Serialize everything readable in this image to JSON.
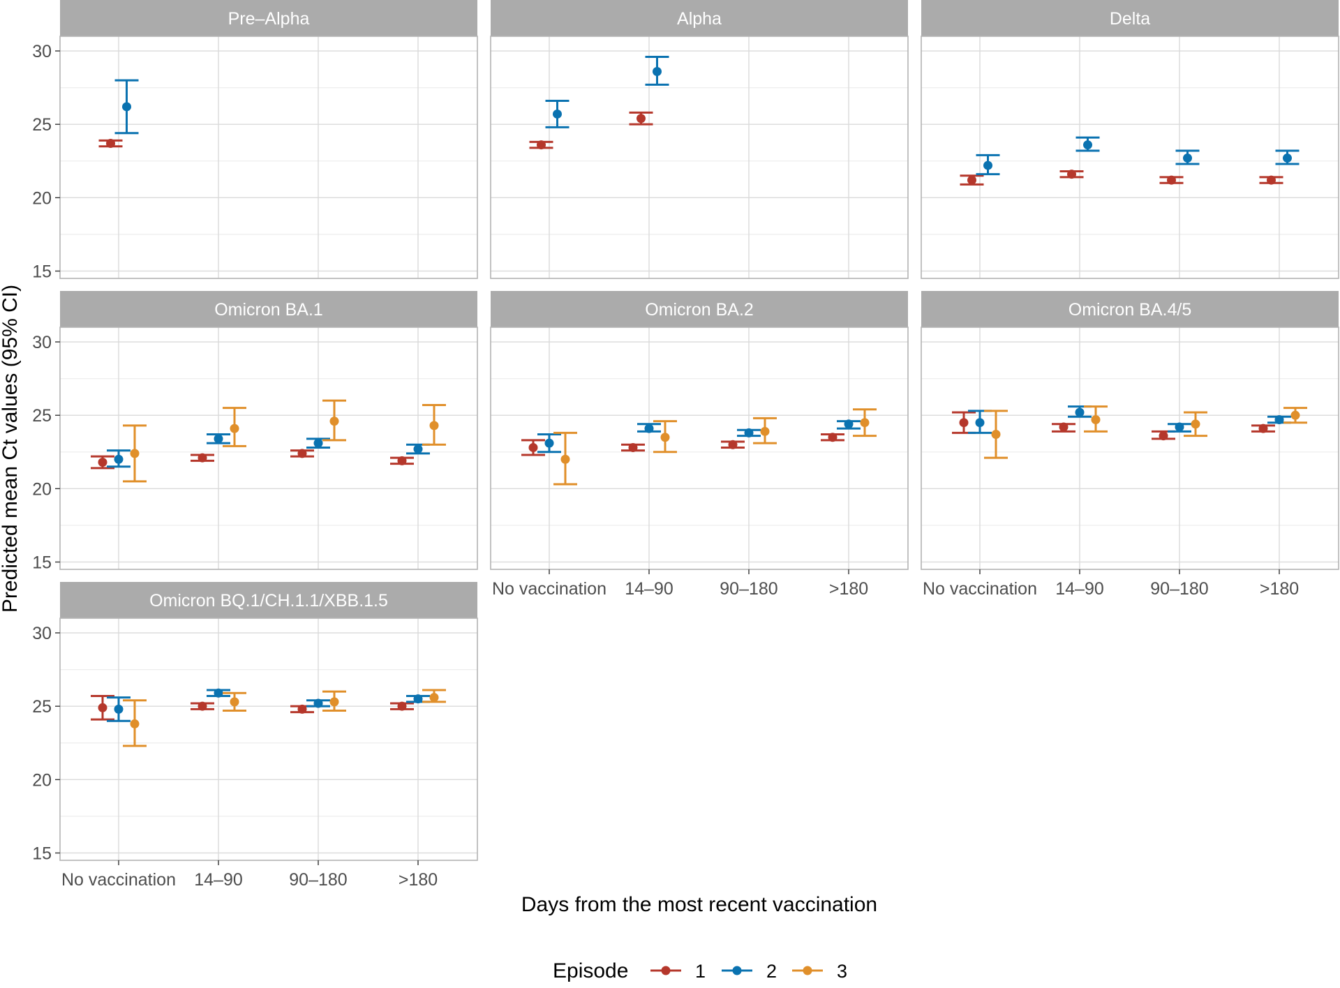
{
  "colors": {
    "episode_1": "#B5372B",
    "episode_2": "#0A72B0",
    "episode_3": "#E08F2A",
    "strip_background": "#ABABAB",
    "panel_border": "#B3B3B3",
    "grid_major": "#DADADA",
    "grid_minor": "#EEEEEE"
  },
  "chart_data": {
    "type": "scatter",
    "variant": "point estimates with 95% CI error bars, faceted panels",
    "xlabel": "Days from the most recent vaccination",
    "ylabel": "Predicted mean Ct values (95% CI)",
    "categories": [
      "No vaccination",
      "14–90",
      "90–180",
      ">180"
    ],
    "y_ticks": [
      "15",
      "20",
      "25",
      "30"
    ],
    "ylim": [
      14.5,
      31
    ],
    "grid": true,
    "legend": {
      "title": "Episode",
      "position": "bottom",
      "entries": [
        {
          "label": "1",
          "color": "#B5372B"
        },
        {
          "label": "2",
          "color": "#0A72B0"
        },
        {
          "label": "3",
          "color": "#E08F2A"
        }
      ]
    },
    "panels": [
      {
        "title": "Pre–Alpha",
        "series": [
          {
            "episode": "1",
            "points": [
              {
                "category": "No vaccination",
                "mean": 23.7,
                "lower": 23.5,
                "upper": 23.9
              }
            ]
          },
          {
            "episode": "2",
            "points": [
              {
                "category": "No vaccination",
                "mean": 26.2,
                "lower": 24.4,
                "upper": 28.0
              }
            ]
          }
        ]
      },
      {
        "title": "Alpha",
        "series": [
          {
            "episode": "1",
            "points": [
              {
                "category": "No vaccination",
                "mean": 23.6,
                "lower": 23.4,
                "upper": 23.8
              },
              {
                "category": "14–90",
                "mean": 25.4,
                "lower": 25.0,
                "upper": 25.8
              }
            ]
          },
          {
            "episode": "2",
            "points": [
              {
                "category": "No vaccination",
                "mean": 25.7,
                "lower": 24.8,
                "upper": 26.6
              },
              {
                "category": "14–90",
                "mean": 28.6,
                "lower": 27.7,
                "upper": 29.6
              }
            ]
          }
        ]
      },
      {
        "title": "Delta",
        "series": [
          {
            "episode": "1",
            "points": [
              {
                "category": "No vaccination",
                "mean": 21.2,
                "lower": 20.9,
                "upper": 21.5
              },
              {
                "category": "14–90",
                "mean": 21.6,
                "lower": 21.4,
                "upper": 21.8
              },
              {
                "category": "90–180",
                "mean": 21.2,
                "lower": 21.0,
                "upper": 21.4
              },
              {
                "category": ">180",
                "mean": 21.2,
                "lower": 21.0,
                "upper": 21.4
              }
            ]
          },
          {
            "episode": "2",
            "points": [
              {
                "category": "No vaccination",
                "mean": 22.2,
                "lower": 21.6,
                "upper": 22.9
              },
              {
                "category": "14–90",
                "mean": 23.6,
                "lower": 23.2,
                "upper": 24.1
              },
              {
                "category": "90–180",
                "mean": 22.7,
                "lower": 22.3,
                "upper": 23.2
              },
              {
                "category": ">180",
                "mean": 22.7,
                "lower": 22.3,
                "upper": 23.2
              }
            ]
          }
        ]
      },
      {
        "title": "Omicron BA.1",
        "series": [
          {
            "episode": "1",
            "points": [
              {
                "category": "No vaccination",
                "mean": 21.8,
                "lower": 21.4,
                "upper": 22.2
              },
              {
                "category": "14–90",
                "mean": 22.1,
                "lower": 21.9,
                "upper": 22.3
              },
              {
                "category": "90–180",
                "mean": 22.4,
                "lower": 22.2,
                "upper": 22.6
              },
              {
                "category": ">180",
                "mean": 21.9,
                "lower": 21.7,
                "upper": 22.1
              }
            ]
          },
          {
            "episode": "2",
            "points": [
              {
                "category": "No vaccination",
                "mean": 22.0,
                "lower": 21.5,
                "upper": 22.6
              },
              {
                "category": "14–90",
                "mean": 23.4,
                "lower": 23.1,
                "upper": 23.7
              },
              {
                "category": "90–180",
                "mean": 23.1,
                "lower": 22.8,
                "upper": 23.4
              },
              {
                "category": ">180",
                "mean": 22.7,
                "lower": 22.4,
                "upper": 23.0
              }
            ]
          },
          {
            "episode": "3",
            "points": [
              {
                "category": "No vaccination",
                "mean": 22.4,
                "lower": 20.5,
                "upper": 24.3
              },
              {
                "category": "14–90",
                "mean": 24.1,
                "lower": 22.9,
                "upper": 25.5
              },
              {
                "category": "90–180",
                "mean": 24.6,
                "lower": 23.3,
                "upper": 26.0
              },
              {
                "category": ">180",
                "mean": 24.3,
                "lower": 23.0,
                "upper": 25.7
              }
            ]
          }
        ]
      },
      {
        "title": "Omicron BA.2",
        "series": [
          {
            "episode": "1",
            "points": [
              {
                "category": "No vaccination",
                "mean": 22.8,
                "lower": 22.3,
                "upper": 23.3
              },
              {
                "category": "14–90",
                "mean": 22.8,
                "lower": 22.6,
                "upper": 23.0
              },
              {
                "category": "90–180",
                "mean": 23.0,
                "lower": 22.8,
                "upper": 23.2
              },
              {
                "category": ">180",
                "mean": 23.5,
                "lower": 23.3,
                "upper": 23.7
              }
            ]
          },
          {
            "episode": "2",
            "points": [
              {
                "category": "No vaccination",
                "mean": 23.1,
                "lower": 22.5,
                "upper": 23.7
              },
              {
                "category": "14–90",
                "mean": 24.1,
                "lower": 23.9,
                "upper": 24.4
              },
              {
                "category": "90–180",
                "mean": 23.8,
                "lower": 23.6,
                "upper": 24.0
              },
              {
                "category": ">180",
                "mean": 24.4,
                "lower": 24.1,
                "upper": 24.6
              }
            ]
          },
          {
            "episode": "3",
            "points": [
              {
                "category": "No vaccination",
                "mean": 22.0,
                "lower": 20.3,
                "upper": 23.8
              },
              {
                "category": "14–90",
                "mean": 23.5,
                "lower": 22.5,
                "upper": 24.6
              },
              {
                "category": "90–180",
                "mean": 23.9,
                "lower": 23.1,
                "upper": 24.8
              },
              {
                "category": ">180",
                "mean": 24.5,
                "lower": 23.6,
                "upper": 25.4
              }
            ]
          }
        ]
      },
      {
        "title": "Omicron BA.4/5",
        "series": [
          {
            "episode": "1",
            "points": [
              {
                "category": "No vaccination",
                "mean": 24.5,
                "lower": 23.8,
                "upper": 25.2
              },
              {
                "category": "14–90",
                "mean": 24.2,
                "lower": 23.9,
                "upper": 24.4
              },
              {
                "category": "90–180",
                "mean": 23.6,
                "lower": 23.4,
                "upper": 23.9
              },
              {
                "category": ">180",
                "mean": 24.1,
                "lower": 23.9,
                "upper": 24.3
              }
            ]
          },
          {
            "episode": "2",
            "points": [
              {
                "category": "No vaccination",
                "mean": 24.5,
                "lower": 23.8,
                "upper": 25.3
              },
              {
                "category": "14–90",
                "mean": 25.2,
                "lower": 24.9,
                "upper": 25.6
              },
              {
                "category": "90–180",
                "mean": 24.2,
                "lower": 23.9,
                "upper": 24.4
              },
              {
                "category": ">180",
                "mean": 24.7,
                "lower": 24.5,
                "upper": 24.9
              }
            ]
          },
          {
            "episode": "3",
            "points": [
              {
                "category": "No vaccination",
                "mean": 23.7,
                "lower": 22.1,
                "upper": 25.3
              },
              {
                "category": "14–90",
                "mean": 24.7,
                "lower": 23.9,
                "upper": 25.6
              },
              {
                "category": "90–180",
                "mean": 24.4,
                "lower": 23.6,
                "upper": 25.2
              },
              {
                "category": ">180",
                "mean": 25.0,
                "lower": 24.5,
                "upper": 25.5
              }
            ]
          }
        ]
      },
      {
        "title": "Omicron BQ.1/CH.1.1/XBB.1.5",
        "series": [
          {
            "episode": "1",
            "points": [
              {
                "category": "No vaccination",
                "mean": 24.9,
                "lower": 24.1,
                "upper": 25.7
              },
              {
                "category": "14–90",
                "mean": 25.0,
                "lower": 24.8,
                "upper": 25.2
              },
              {
                "category": "90–180",
                "mean": 24.8,
                "lower": 24.6,
                "upper": 25.0
              },
              {
                "category": ">180",
                "mean": 25.0,
                "lower": 24.8,
                "upper": 25.2
              }
            ]
          },
          {
            "episode": "2",
            "points": [
              {
                "category": "No vaccination",
                "mean": 24.8,
                "lower": 24.0,
                "upper": 25.6
              },
              {
                "category": "14–90",
                "mean": 25.9,
                "lower": 25.7,
                "upper": 26.1
              },
              {
                "category": "90–180",
                "mean": 25.2,
                "lower": 25.0,
                "upper": 25.4
              },
              {
                "category": ">180",
                "mean": 25.5,
                "lower": 25.3,
                "upper": 25.7
              }
            ]
          },
          {
            "episode": "3",
            "points": [
              {
                "category": "No vaccination",
                "mean": 23.8,
                "lower": 22.3,
                "upper": 25.4
              },
              {
                "category": "14–90",
                "mean": 25.3,
                "lower": 24.7,
                "upper": 25.9
              },
              {
                "category": "90–180",
                "mean": 25.3,
                "lower": 24.7,
                "upper": 26.0
              },
              {
                "category": ">180",
                "mean": 25.6,
                "lower": 25.3,
                "upper": 26.1
              }
            ]
          }
        ]
      }
    ]
  }
}
